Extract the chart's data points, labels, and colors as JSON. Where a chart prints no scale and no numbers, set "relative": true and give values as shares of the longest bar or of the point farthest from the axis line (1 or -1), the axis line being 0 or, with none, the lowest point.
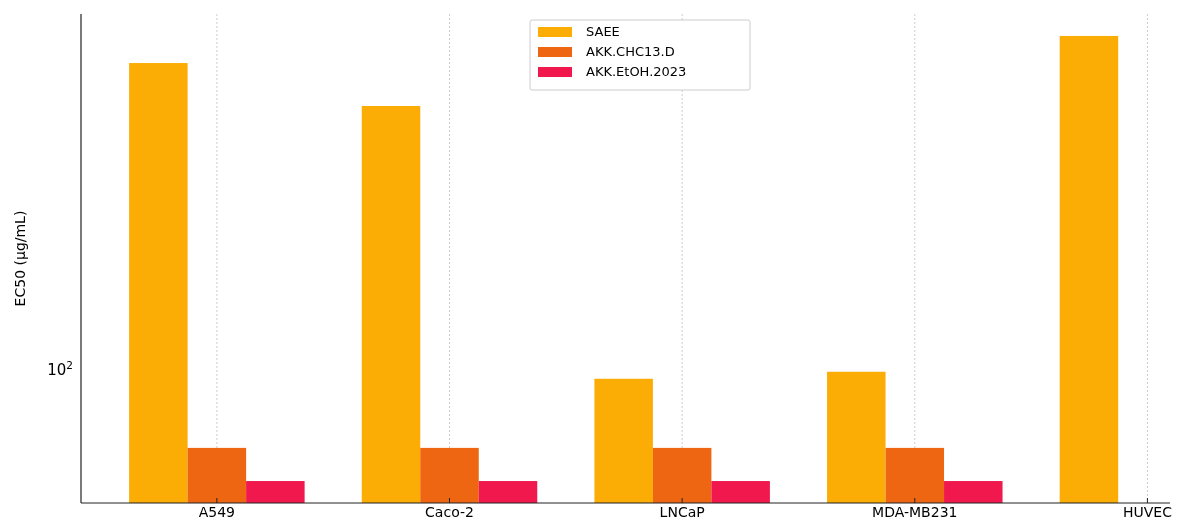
{
  "chart_data": {
    "type": "bar",
    "ylabel": "EC50 (µg/mL)",
    "relative": true,
    "categories": [
      "A549",
      "Caco-2",
      "LNCaP",
      "MDA-MB231",
      "HUVEC"
    ],
    "series": [
      {
        "name": "SAEE",
        "color": "#fbad05",
        "values": [
          0.942,
          0.85,
          0.266,
          0.281,
          1
        ]
      },
      {
        "name": "AKK.CHC13.D",
        "color": "#ef6612",
        "values": [
          0.118,
          0.118,
          0.118,
          0.118,
          null
        ]
      },
      {
        "name": "AKK.EtOH.2023",
        "color": "#f0184d",
        "values": [
          0.047,
          0.047,
          0.047,
          0.047,
          null
        ]
      }
    ],
    "annotations": [
      "10$^{2}$"
    ],
    "grid": "x",
    "legend": "top"
  }
}
